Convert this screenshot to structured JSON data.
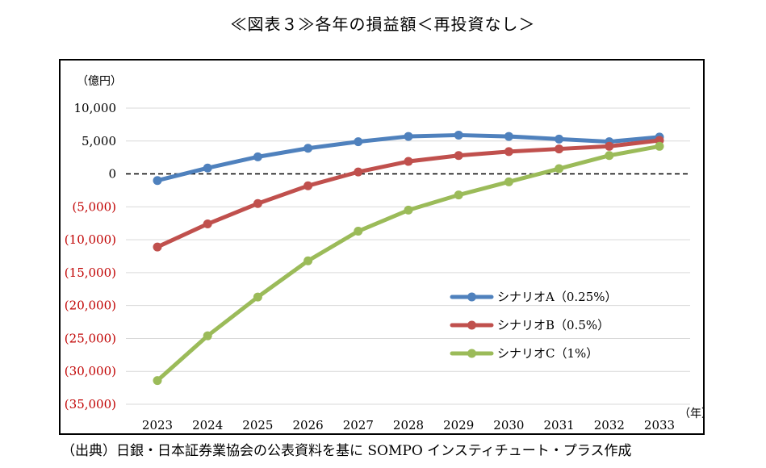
{
  "title": "≪図表３≫各年の損益額＜再投資なし＞",
  "source_note": "（出典）日銀・日本証券業協会の公表資料を基に SOMPO インスティチュート・プラス作成",
  "chart_data": {
    "type": "line",
    "title": "≪図表３≫各年の損益額＜再投資なし＞",
    "ylabel": "（億円）",
    "xlabel": "（年）",
    "ylim": [
      -35000,
      10000
    ],
    "y_ticks": [
      {
        "value": 10000,
        "label": "10,000",
        "color": "#000000"
      },
      {
        "value": 5000,
        "label": "5,000",
        "color": "#000000"
      },
      {
        "value": 0,
        "label": "0",
        "color": "#000000"
      },
      {
        "value": -5000,
        "label": "(5,000)",
        "color": "#c00000"
      },
      {
        "value": -10000,
        "label": "(10,000)",
        "color": "#c00000"
      },
      {
        "value": -15000,
        "label": "(15,000)",
        "color": "#c00000"
      },
      {
        "value": -20000,
        "label": "(20,000)",
        "color": "#c00000"
      },
      {
        "value": -25000,
        "label": "(25,000)",
        "color": "#c00000"
      },
      {
        "value": -30000,
        "label": "(30,000)",
        "color": "#c00000"
      },
      {
        "value": -35000,
        "label": "(35,000)",
        "color": "#c00000"
      }
    ],
    "categories": [
      "2023",
      "2024",
      "2025",
      "2026",
      "2027",
      "2028",
      "2029",
      "2030",
      "2031",
      "2032",
      "2033"
    ],
    "grid": true,
    "zero_line": "dashed",
    "legend_position": "lower-right",
    "series": [
      {
        "name": "シナリオA（0.25%）",
        "color": "#4f81bd",
        "values": [
          -1000,
          900,
          2600,
          3900,
          4900,
          5700,
          5900,
          5700,
          5300,
          4900,
          5600
        ]
      },
      {
        "name": "シナリオB（0.5%）",
        "color": "#c0504d",
        "values": [
          -11100,
          -7600,
          -4500,
          -1800,
          300,
          1900,
          2800,
          3400,
          3800,
          4200,
          5100
        ]
      },
      {
        "name": "シナリオC（1%）",
        "color": "#9bbb59",
        "values": [
          -31400,
          -24600,
          -18700,
          -13200,
          -8700,
          -5500,
          -3200,
          -1200,
          800,
          2800,
          4200
        ]
      }
    ]
  }
}
